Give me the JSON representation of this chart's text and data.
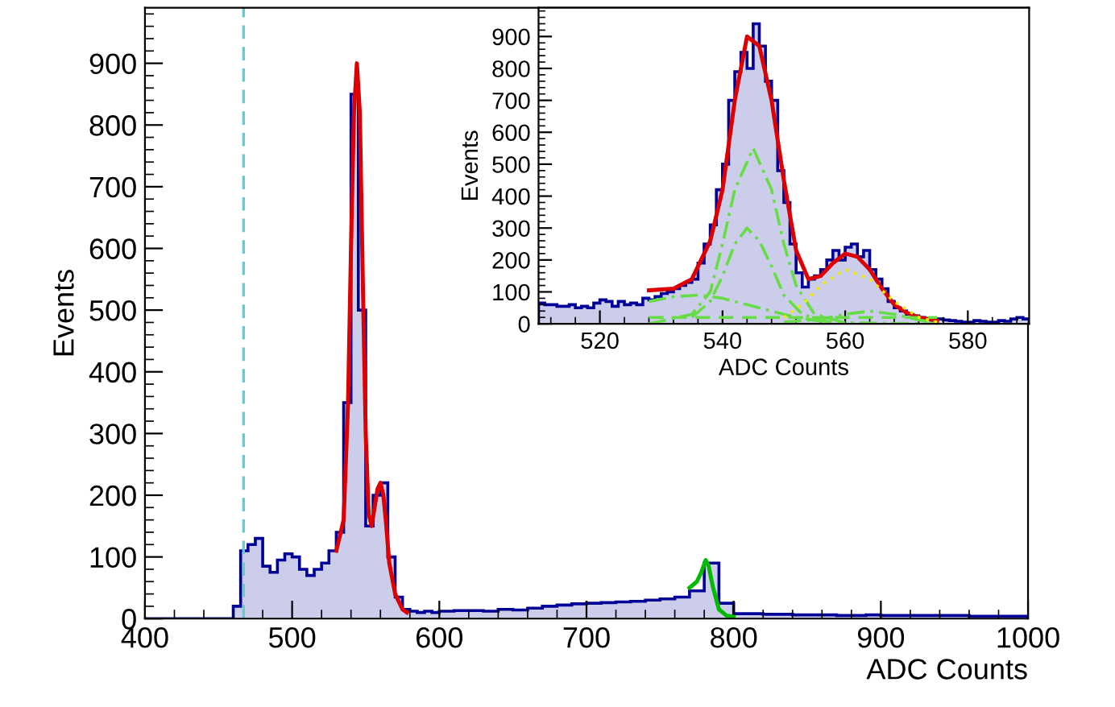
{
  "chart_data": [
    {
      "type": "histogram",
      "xlabel": "ADC Counts",
      "ylabel": "Events",
      "color": "#000099",
      "bins": [
        400,
        460,
        465,
        470,
        475,
        480,
        485,
        490,
        495,
        500,
        505,
        510,
        515,
        520,
        525,
        530,
        535,
        540,
        545,
        550,
        555,
        560,
        565,
        570,
        575,
        580,
        585,
        590,
        595,
        600,
        610,
        620,
        630,
        640,
        650,
        660,
        670,
        680,
        690,
        700,
        710,
        720,
        730,
        740,
        750,
        760,
        770,
        780,
        790,
        800,
        810,
        820,
        830,
        840,
        850,
        860,
        870,
        880,
        890,
        900,
        910,
        920,
        930,
        940,
        950,
        960,
        970,
        980,
        990,
        1000
      ],
      "values": [
        0,
        20,
        110,
        120,
        130,
        85,
        75,
        95,
        105,
        100,
        80,
        70,
        80,
        90,
        110,
        140,
        350,
        850,
        500,
        150,
        200,
        220,
        100,
        35,
        15,
        12,
        10,
        12,
        10,
        12,
        13,
        13,
        12,
        15,
        14,
        17,
        20,
        22,
        24,
        25,
        26,
        27,
        28,
        30,
        32,
        35,
        45,
        90,
        25,
        8,
        8,
        7,
        7,
        6,
        6,
        6,
        5,
        5,
        6,
        5,
        5,
        5,
        5,
        5,
        5,
        4,
        4,
        4,
        4
      ],
      "series": [
        {
          "type": "line",
          "color": "#dd0000",
          "x": [
            530,
            535,
            538,
            540,
            542,
            544,
            546,
            548,
            550,
            552,
            554,
            556,
            558,
            560,
            562,
            564,
            566,
            570,
            575,
            578
          ],
          "values": [
            110,
            160,
            350,
            600,
            820,
            900,
            820,
            550,
            300,
            170,
            150,
            180,
            210,
            220,
            200,
            150,
            90,
            40,
            15,
            10
          ]
        },
        {
          "type": "line",
          "color": "#00bb00",
          "x": [
            770,
            775,
            778,
            781,
            783,
            786,
            790,
            795,
            800
          ],
          "values": [
            50,
            60,
            75,
            95,
            85,
            50,
            15,
            5,
            3
          ]
        }
      ],
      "ref_lines": [
        {
          "axis": "x",
          "value": 467,
          "color": "#66cccc",
          "line_style": "dashed"
        }
      ],
      "xlim": [
        400,
        1000
      ],
      "ylim": [
        0,
        990
      ],
      "xticks": [
        400,
        500,
        600,
        700,
        800,
        900,
        1000
      ],
      "yticks": [
        0,
        100,
        200,
        300,
        400,
        500,
        600,
        700,
        800,
        900
      ]
    },
    {
      "type": "histogram",
      "xlabel": "ADC Counts",
      "ylabel": "Events",
      "color": "#000099",
      "bins": [
        510,
        511,
        512,
        513,
        514,
        515,
        516,
        517,
        518,
        519,
        520,
        521,
        522,
        523,
        524,
        525,
        526,
        527,
        528,
        529,
        530,
        531,
        532,
        533,
        534,
        535,
        536,
        537,
        538,
        539,
        540,
        541,
        542,
        543,
        544,
        545,
        546,
        547,
        548,
        549,
        550,
        551,
        552,
        553,
        554,
        555,
        556,
        557,
        558,
        559,
        560,
        561,
        562,
        563,
        564,
        565,
        566,
        567,
        568,
        569,
        570,
        571,
        572,
        573,
        574,
        575,
        576,
        577,
        578,
        579,
        580,
        581,
        582,
        583,
        584,
        585,
        586,
        587,
        588,
        589,
        590
      ],
      "values": [
        65,
        60,
        60,
        55,
        55,
        60,
        50,
        55,
        50,
        65,
        75,
        70,
        55,
        70,
        60,
        65,
        60,
        80,
        75,
        85,
        95,
        100,
        110,
        120,
        130,
        140,
        190,
        250,
        310,
        420,
        500,
        700,
        790,
        850,
        800,
        940,
        870,
        760,
        700,
        480,
        380,
        250,
        160,
        115,
        140,
        150,
        170,
        200,
        230,
        200,
        240,
        250,
        210,
        230,
        170,
        140,
        110,
        70,
        50,
        40,
        30,
        25,
        20,
        15,
        12,
        15,
        12,
        10,
        8,
        5,
        5,
        10,
        8,
        5,
        5,
        10,
        8,
        15,
        20,
        15
      ],
      "series": [
        {
          "type": "line",
          "color": "#dd0000",
          "x": [
            528,
            532,
            535,
            538,
            540,
            542,
            544,
            546,
            548,
            550,
            552,
            554,
            556,
            558,
            560,
            562,
            564,
            566,
            568,
            570,
            572,
            575
          ],
          "values": [
            105,
            110,
            140,
            260,
            420,
            700,
            900,
            870,
            700,
            450,
            230,
            140,
            150,
            190,
            220,
            210,
            170,
            110,
            60,
            35,
            20,
            10
          ]
        },
        {
          "type": "line",
          "color": "#66dd44",
          "line_style": "dashdot",
          "x": [
            528,
            535,
            538,
            540,
            542,
            545,
            548,
            550,
            552,
            555,
            560,
            575
          ],
          "values": [
            0,
            30,
            100,
            250,
            420,
            550,
            420,
            250,
            120,
            30,
            3,
            0
          ]
        },
        {
          "type": "line",
          "color": "#66dd44",
          "line_style": "dashdot",
          "x": [
            535,
            538,
            540,
            542,
            544,
            546,
            548,
            550,
            553,
            556,
            560
          ],
          "values": [
            20,
            70,
            150,
            250,
            300,
            260,
            180,
            90,
            30,
            10,
            0
          ]
        },
        {
          "type": "line",
          "color": "#66dd44",
          "line_style": "dashdot",
          "x": [
            528,
            532,
            536,
            540,
            544,
            548,
            552,
            556,
            560
          ],
          "values": [
            70,
            85,
            90,
            80,
            60,
            40,
            20,
            8,
            2
          ]
        },
        {
          "type": "line",
          "color": "#66dd44",
          "line_style": "dashdot",
          "x": [
            550,
            556,
            560,
            564,
            568,
            572,
            575
          ],
          "values": [
            5,
            15,
            30,
            40,
            30,
            12,
            5
          ]
        },
        {
          "type": "line",
          "color": "#66dd44",
          "line_style": "dashed",
          "x": [
            528,
            575
          ],
          "values": [
            20,
            20
          ]
        },
        {
          "type": "line",
          "color": "#eeee00",
          "line_style": "dotted",
          "x": [
            550,
            553,
            556,
            560,
            564,
            568,
            572,
            575
          ],
          "values": [
            20,
            60,
            120,
            170,
            140,
            70,
            20,
            5
          ]
        }
      ],
      "xlim": [
        510,
        590
      ],
      "ylim": [
        0,
        990
      ],
      "xticks": [
        520,
        540,
        560,
        580
      ],
      "yticks": [
        0,
        100,
        200,
        300,
        400,
        500,
        600,
        700,
        800,
        900
      ]
    }
  ]
}
